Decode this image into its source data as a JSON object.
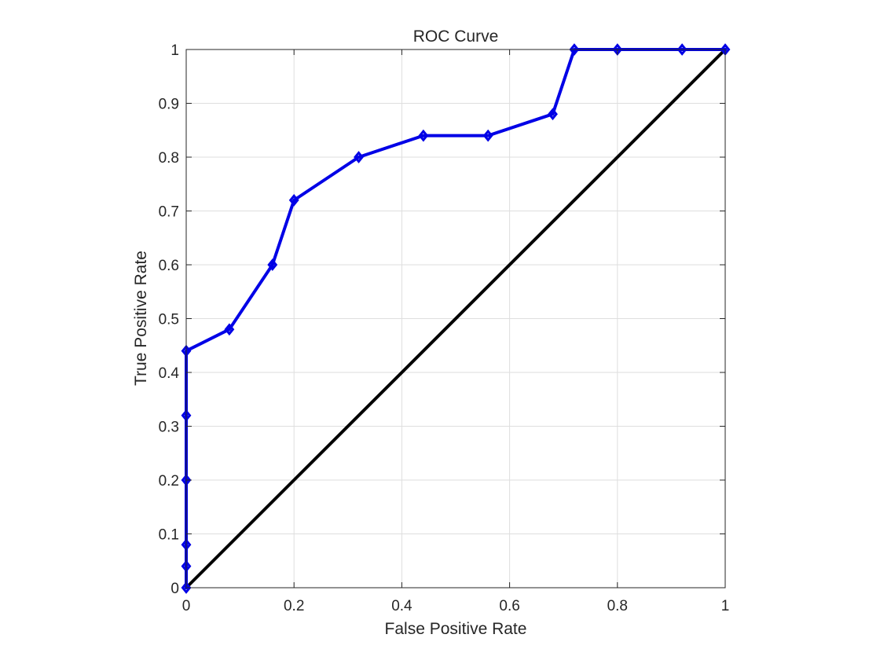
{
  "chart_data": {
    "type": "line",
    "title": "ROC Curve",
    "xlabel": "False Positive Rate",
    "ylabel": "True Positive Rate",
    "xlim": [
      0,
      1
    ],
    "ylim": [
      0,
      1
    ],
    "xticks": [
      0,
      0.2,
      0.4,
      0.6,
      0.8,
      1
    ],
    "xtick_labels": [
      "0",
      "0.2",
      "0.4",
      "0.6",
      "0.8",
      "1"
    ],
    "yticks": [
      0,
      0.1,
      0.2,
      0.3,
      0.4,
      0.5,
      0.6,
      0.7,
      0.8,
      0.9,
      1
    ],
    "ytick_labels": [
      "0",
      "0.1",
      "0.2",
      "0.3",
      "0.4",
      "0.5",
      "0.6",
      "0.7",
      "0.8",
      "0.9",
      "1"
    ],
    "grid": true,
    "series": [
      {
        "color": "#0000e6",
        "marker": "diamond",
        "x": [
          0,
          0,
          0,
          0,
          0,
          0,
          0.08,
          0.16,
          0.2,
          0.32,
          0.44,
          0.56,
          0.68,
          0.72,
          0.8,
          0.92,
          1
        ],
        "y": [
          0,
          0.04,
          0.08,
          0.2,
          0.32,
          0.44,
          0.48,
          0.6,
          0.72,
          0.8,
          0.84,
          0.84,
          0.88,
          1,
          1,
          1,
          1
        ]
      },
      {
        "color": "#000000",
        "marker": "none",
        "x": [
          0,
          1
        ],
        "y": [
          0,
          1
        ]
      }
    ]
  }
}
